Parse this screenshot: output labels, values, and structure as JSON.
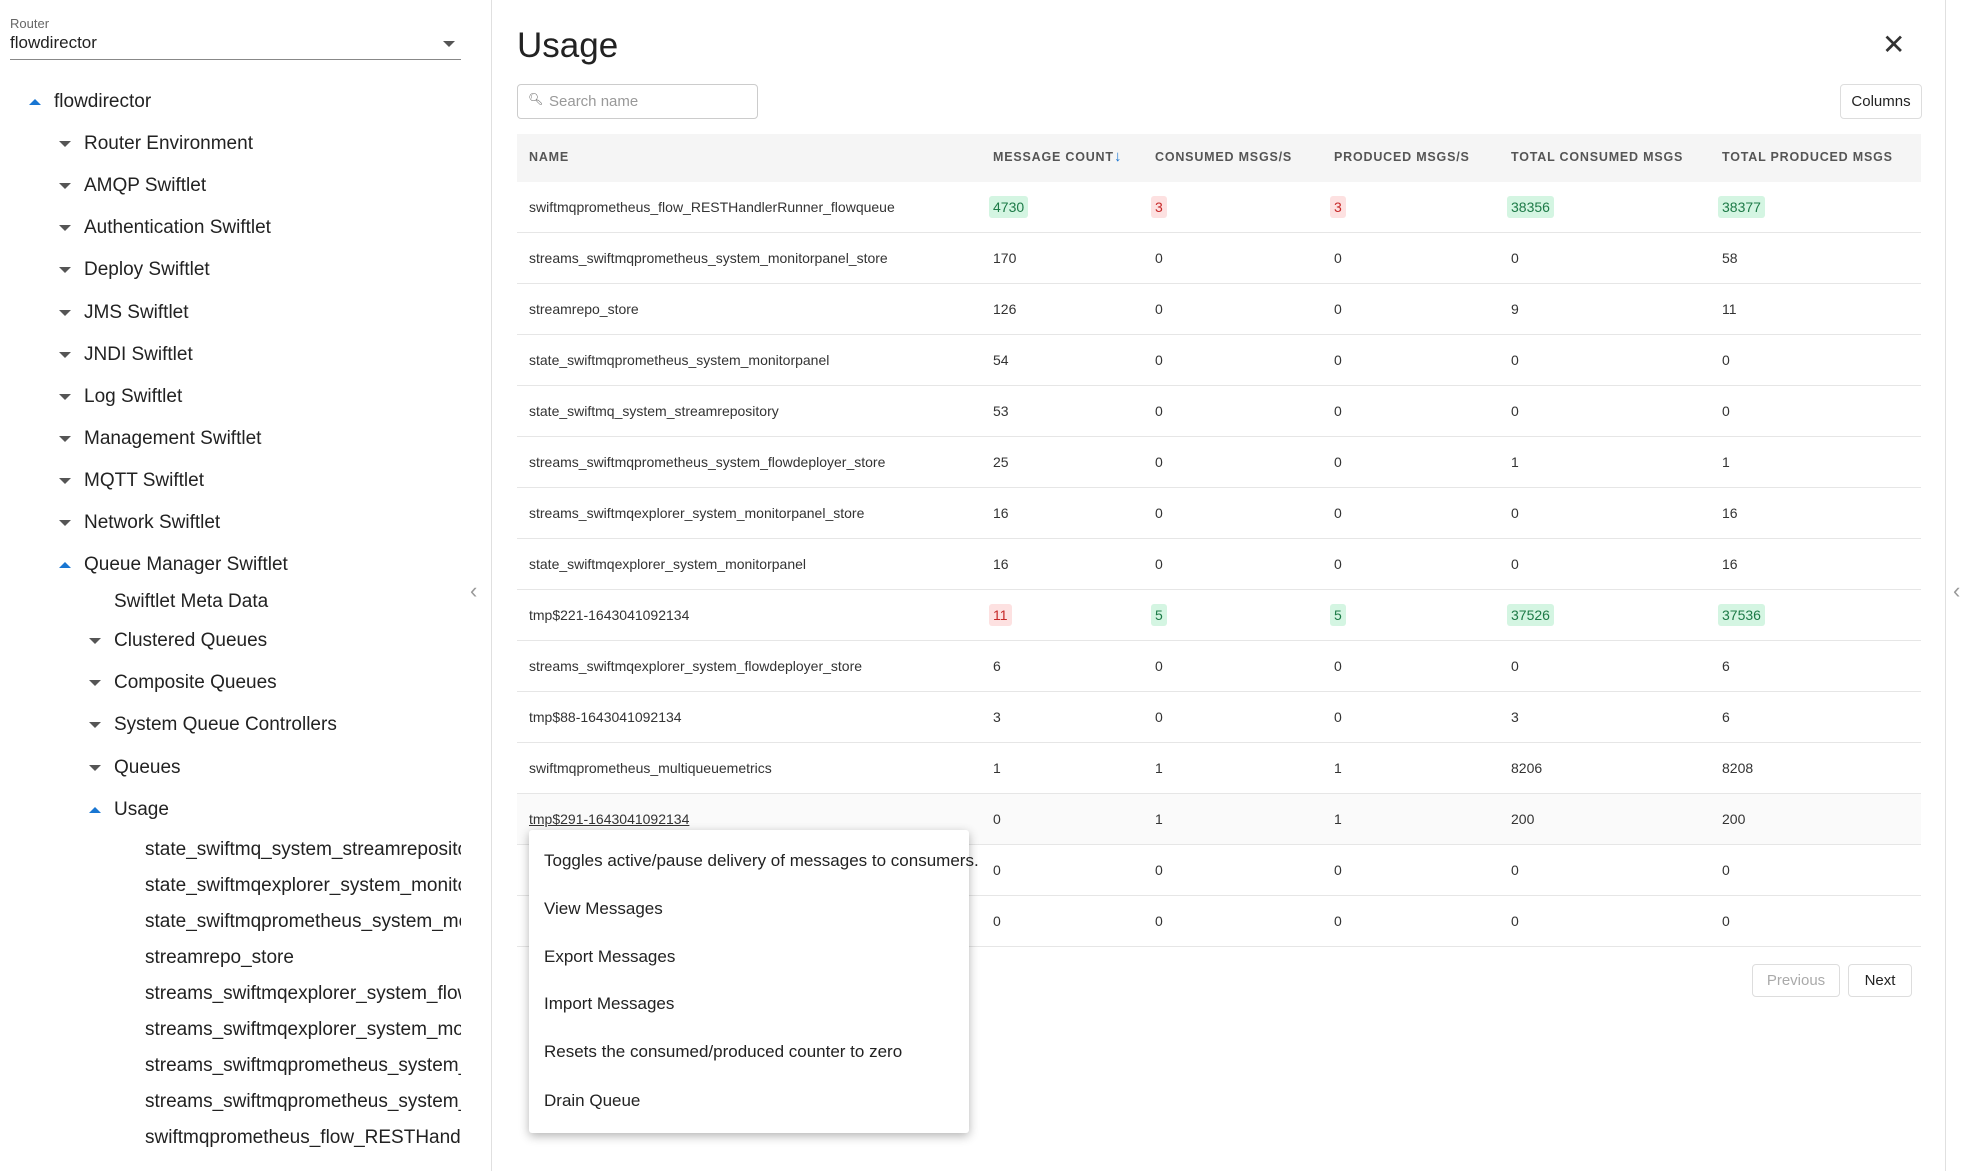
{
  "sidebar": {
    "router_label": "Router",
    "router_value": "flowdirector",
    "tree": [
      "flowdirector",
      "Router Environment",
      "AMQP Swiftlet",
      "Authentication Swiftlet",
      "Deploy Swiftlet",
      "JMS Swiftlet",
      "JNDI Swiftlet",
      "Log Swiftlet",
      "Management Swiftlet",
      "MQTT Swiftlet",
      "Network Swiftlet",
      "Queue Manager Swiftlet",
      "Swiftlet Meta Data",
      "Clustered Queues",
      "Composite Queues",
      "System Queue Controllers",
      "Queues",
      "Usage",
      "state_swiftmq_system_streamrepository",
      "state_swiftmqexplorer_system_monitorp",
      "state_swiftmqprometheus_system_mon",
      "streamrepo_store",
      "streams_swiftmqexplorer_system_flowd",
      "streams_swiftmqexplorer_system_moni",
      "streams_swiftmqprometheus_system_fl",
      "streams_swiftmqprometheus_system_m",
      "swiftmqprometheus_flow_RESTHandler"
    ]
  },
  "header": {
    "title": "Usage",
    "search_placeholder": "Search name",
    "columns_button": "Columns"
  },
  "table": {
    "columns": [
      "NAME",
      "MESSAGE COUNT",
      "CONSUMED MSGS/S",
      "PRODUCED MSGS/S",
      "TOTAL CONSUMED MSGS",
      "TOTAL PRODUCED MSGS"
    ],
    "rows": [
      [
        "swiftmqprometheus_flow_RESTHandlerRunner_flowqueue",
        4730,
        3,
        3,
        38356,
        38377
      ],
      [
        "streams_swiftmqprometheus_system_monitorpanel_store",
        170,
        0,
        0,
        0,
        58
      ],
      [
        "streamrepo_store",
        126,
        0,
        0,
        9,
        11
      ],
      [
        "state_swiftmqprometheus_system_monitorpanel",
        54,
        0,
        0,
        0,
        0
      ],
      [
        "state_swiftmq_system_streamrepository",
        53,
        0,
        0,
        0,
        0
      ],
      [
        "streams_swiftmqprometheus_system_flowdeployer_store",
        25,
        0,
        0,
        1,
        1
      ],
      [
        "streams_swiftmqexplorer_system_monitorpanel_store",
        16,
        0,
        0,
        0,
        16
      ],
      [
        "state_swiftmqexplorer_system_monitorpanel",
        16,
        0,
        0,
        0,
        16
      ],
      [
        "tmp$221-1643041092134",
        11,
        5,
        5,
        37526,
        37536
      ],
      [
        "streams_swiftmqexplorer_system_flowdeployer_store",
        6,
        0,
        0,
        0,
        6
      ],
      [
        "tmp$88-1643041092134",
        3,
        0,
        0,
        3,
        6
      ],
      [
        "swiftmqprometheus_multiqueuemetrics",
        1,
        1,
        1,
        8206,
        8208
      ],
      [
        "tmp$291-1643041092134",
        0,
        1,
        1,
        200,
        200
      ],
      [
        null,
        0,
        0,
        0,
        0,
        0
      ],
      [
        null,
        0,
        0,
        0,
        0,
        0
      ]
    ]
  },
  "pagination": {
    "previous": "Previous",
    "next": "Next"
  },
  "context_menu": [
    "Toggles active/pause delivery of messages to consumers.",
    "View Messages",
    "Export Messages",
    "Import Messages",
    "Resets the consumed/produced counter to zero",
    "Drain Queue"
  ]
}
